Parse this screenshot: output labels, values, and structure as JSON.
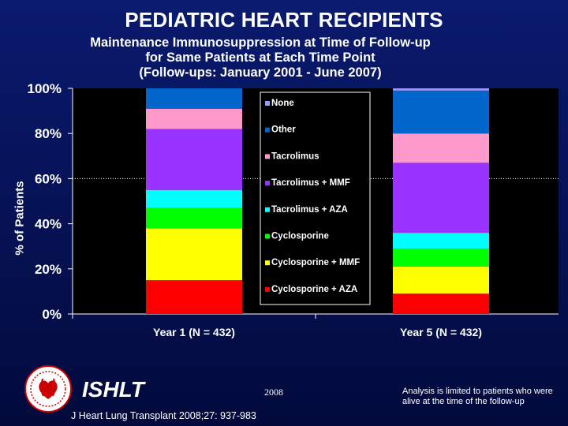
{
  "header": {
    "title": "PEDIATRIC HEART RECIPIENTS",
    "subtitle_lines": [
      "Maintenance Immunosuppression at Time of Follow-up",
      "for Same Patients at Each Time Point",
      "(Follow-ups: January 2001 - June 2007)"
    ]
  },
  "chart_data": {
    "type": "bar",
    "stacked": true,
    "ylabel": "% of Patients",
    "ylim": [
      0,
      100
    ],
    "yticks": [
      "0%",
      "20%",
      "40%",
      "60%",
      "80%",
      "100%"
    ],
    "categories": [
      "Year 1 (N = 432)",
      "Year 5 (N = 432)"
    ],
    "series": [
      {
        "name": "Cyclosporine + AZA",
        "color": "#ff0000",
        "values": [
          15,
          9
        ]
      },
      {
        "name": "Cyclosporine + MMF",
        "color": "#ffff00",
        "values": [
          23,
          12
        ]
      },
      {
        "name": "Cyclosporine",
        "color": "#00ff00",
        "values": [
          9,
          8
        ]
      },
      {
        "name": "Tacrolimus + AZA",
        "color": "#00ffff",
        "values": [
          8,
          7
        ]
      },
      {
        "name": "Tacrolimus + MMF",
        "color": "#9933ff",
        "values": [
          27,
          31
        ]
      },
      {
        "name": "Tacrolimus",
        "color": "#ff99cc",
        "values": [
          9,
          13
        ]
      },
      {
        "name": "Other",
        "color": "#0066cc",
        "values": [
          9,
          19
        ]
      },
      {
        "name": "None",
        "color": "#9999ff",
        "values": [
          0,
          1
        ]
      }
    ],
    "legend_position": "center",
    "reference_line": 60
  },
  "footer": {
    "org": "ISHLT",
    "year": "2008",
    "citation": "J Heart Lung Transplant 2008;27: 937-983",
    "note": "Analysis is limited to patients who were alive at the time of the follow-up"
  }
}
